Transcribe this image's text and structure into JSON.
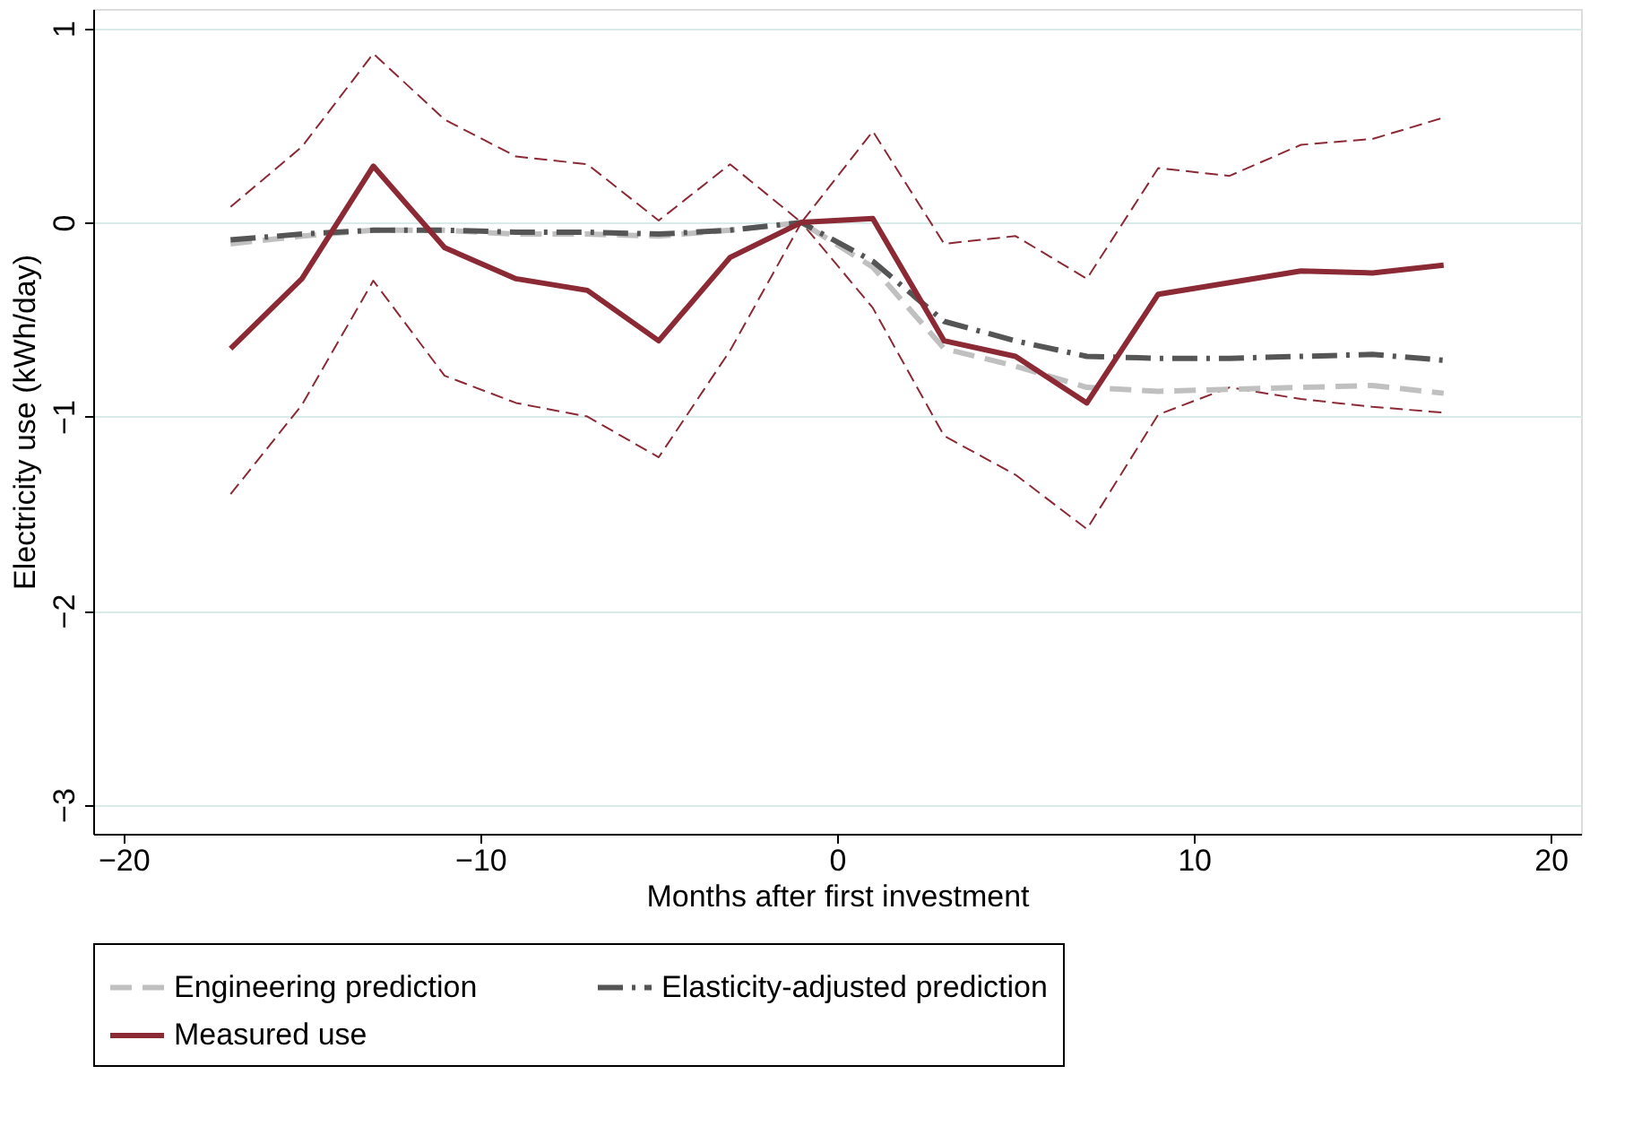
{
  "chart_data": {
    "type": "line",
    "xlabel": "Months after first investment",
    "ylabel": "Electricity use (kWh/day)",
    "x": [
      -17,
      -15,
      -13,
      -11,
      -9,
      -7,
      -5,
      -3,
      -1,
      1,
      3,
      5,
      7,
      9,
      11,
      13,
      15,
      17
    ],
    "series": [
      {
        "name": "Engineering prediction",
        "color": "#c0c0c0",
        "line_style": "dashed",
        "values": [
          -0.11,
          -0.07,
          -0.04,
          -0.04,
          -0.06,
          -0.06,
          -0.07,
          -0.04,
          0,
          -0.23,
          -0.65,
          -0.74,
          -0.85,
          -0.87,
          -0.86,
          -0.85,
          -0.84,
          -0.88
        ]
      },
      {
        "name": "Elasticity-adjusted prediction",
        "color": "#555555",
        "line_style": "dashdot",
        "values": [
          -0.09,
          -0.06,
          -0.04,
          -0.04,
          -0.05,
          -0.05,
          -0.06,
          -0.04,
          0,
          -0.2,
          -0.51,
          -0.61,
          -0.69,
          -0.7,
          -0.7,
          -0.69,
          -0.68,
          -0.71
        ]
      },
      {
        "name": "Measured use",
        "color": "#8b2a35",
        "line_style": "solid",
        "values": [
          -0.65,
          -0.29,
          0.29,
          -0.13,
          -0.29,
          -0.35,
          -0.61,
          -0.18,
          0,
          0.02,
          -0.61,
          -0.69,
          -0.93,
          -0.37,
          -0.31,
          -0.25,
          -0.26,
          -0.22
        ]
      },
      {
        "color": "#8b2a35",
        "line_style": "dashed",
        "values": [
          0.08,
          0.39,
          0.87,
          0.53,
          0.34,
          0.3,
          0.01,
          0.3,
          0,
          0.47,
          -0.11,
          -0.07,
          -0.29,
          0.28,
          0.24,
          0.4,
          0.43,
          0.54
        ]
      },
      {
        "color": "#8b2a35",
        "line_style": "dashed",
        "values": [
          -1.4,
          -0.94,
          -0.3,
          -0.79,
          -0.93,
          -1.0,
          -1.21,
          -0.66,
          0,
          -0.44,
          -1.1,
          -1.3,
          -1.58,
          -0.99,
          -0.85,
          -0.91,
          -0.95,
          -0.98
        ]
      }
    ],
    "xlim": [
      -20.85,
      20.85
    ],
    "xticks": [
      -20,
      -10,
      0,
      10,
      20
    ],
    "ylim": [
      -3.15,
      1.1
    ],
    "yticks": [
      -3,
      -2,
      -1,
      0,
      1
    ],
    "grid": "y",
    "legend": "bottom",
    "marker": "none"
  }
}
